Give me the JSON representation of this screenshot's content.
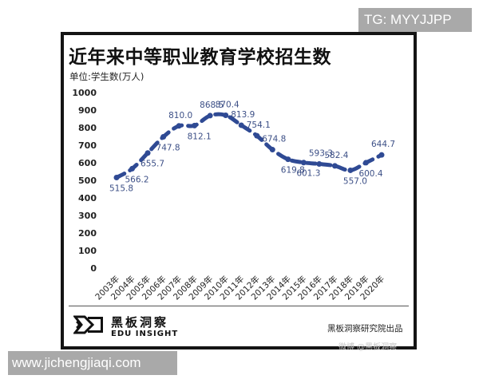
{
  "watermarks": {
    "top_right": "TG: MYYJJPP",
    "bottom_left": "www.jichengjiaqi.com",
    "weibo": "微博 @黑板洞察"
  },
  "header": {
    "title": "近年来中等职业教育学校招生数",
    "unit": "单位:学生数(万人)"
  },
  "footer": {
    "brand_cn": "黑板洞察",
    "brand_en": "EDU INSIGHT",
    "producer": "黑板洞察研究院出品"
  },
  "colors": {
    "line": "#2f4a94",
    "label": "#3c4f86",
    "frame": "#141414"
  },
  "chart_data": {
    "type": "line",
    "title": "近年来中等职业教育学校招生数",
    "subtitle": "单位:学生数(万人)",
    "xlabel": "",
    "ylabel": "学生数(万人)",
    "ylim": [
      0,
      1000
    ],
    "yticks": [
      0,
      100,
      200,
      300,
      400,
      500,
      600,
      700,
      800,
      900,
      1000
    ],
    "grid": false,
    "legend": null,
    "line_style": "dash-dot",
    "categories": [
      "2003年",
      "2004年",
      "2005年",
      "2006年",
      "2007年",
      "2008年",
      "2009年",
      "2010年",
      "2011年",
      "2012年",
      "2013年",
      "2014年",
      "2015年",
      "2016年",
      "2017年",
      "2018年",
      "2019年",
      "2020年"
    ],
    "values": [
      515.8,
      566.2,
      655.7,
      747.8,
      810.0,
      812.1,
      868.5,
      870.4,
      813.9,
      754.1,
      674.8,
      619.8,
      601.3,
      593.3,
      582.4,
      557.0,
      600.4,
      644.7
    ],
    "labels": [
      "515.8",
      "566.2",
      "655.7",
      "747.8",
      "810.0",
      "812.1",
      "868.5",
      "870.4",
      "813.9",
      "754.1",
      "674.8",
      "619.8",
      "601.3",
      "593.3",
      "582.4",
      "557.0",
      "600.4",
      "644.7"
    ],
    "label_positions": [
      "below",
      "below",
      "below",
      "below",
      "above",
      "below",
      "above",
      "above",
      "above",
      "above",
      "above",
      "below",
      "below",
      "above",
      "above",
      "below",
      "below",
      "above"
    ]
  }
}
